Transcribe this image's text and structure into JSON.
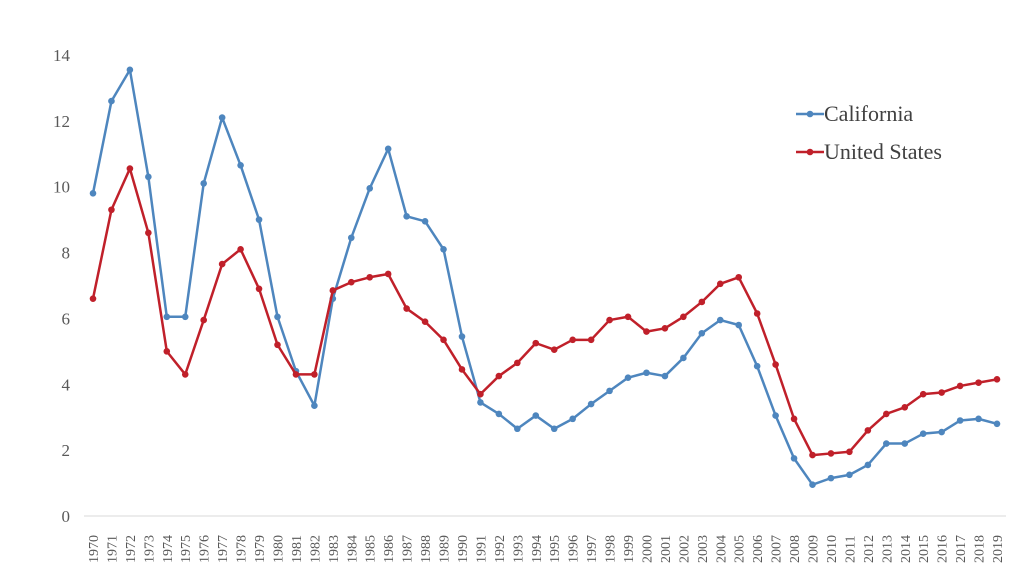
{
  "chart_data": {
    "type": "line",
    "title": "",
    "xlabel": "",
    "ylabel": "",
    "ylim": [
      0,
      14
    ],
    "yticks": [
      "0",
      "2",
      "4",
      "6",
      "8",
      "10",
      "12",
      "14"
    ],
    "grid": false,
    "legend_position": "top-right",
    "categories": [
      "1970",
      "1971",
      "1972",
      "1973",
      "1974",
      "1975",
      "1976",
      "1977",
      "1978",
      "1979",
      "1980",
      "1981",
      "1982",
      "1983",
      "1984",
      "1985",
      "1986",
      "1987",
      "1988",
      "1989",
      "1990",
      "1991",
      "1992",
      "1993",
      "1994",
      "1995",
      "1996",
      "1997",
      "1998",
      "1999",
      "2000",
      "2001",
      "2002",
      "2003",
      "2004",
      "2005",
      "2006",
      "2007",
      "2008",
      "2009",
      "2010",
      "2011",
      "2012",
      "2013",
      "2014",
      "2015",
      "2016",
      "2017",
      "2018",
      "2019"
    ],
    "series": [
      {
        "name": "California",
        "color": "#4e86be",
        "values": [
          9.8,
          12.6,
          13.55,
          10.3,
          6.05,
          6.05,
          10.1,
          12.1,
          10.65,
          9.0,
          6.05,
          4.4,
          3.35,
          6.6,
          8.45,
          9.95,
          11.15,
          9.1,
          8.95,
          8.1,
          5.45,
          3.45,
          3.1,
          2.65,
          3.05,
          2.65,
          2.95,
          3.4,
          3.8,
          4.2,
          4.35,
          4.25,
          4.8,
          5.55,
          5.95,
          5.8,
          4.55,
          3.05,
          1.75,
          0.95,
          1.15,
          1.25,
          1.55,
          2.2,
          2.2,
          2.5,
          2.55,
          2.9,
          2.95,
          2.8
        ]
      },
      {
        "name": "United States",
        "color": "#c0202a",
        "values": [
          6.6,
          9.3,
          10.55,
          8.6,
          5.0,
          4.3,
          5.95,
          7.65,
          8.1,
          6.9,
          5.2,
          4.3,
          4.3,
          6.85,
          7.1,
          7.25,
          7.35,
          6.3,
          5.9,
          5.35,
          4.45,
          3.7,
          4.25,
          4.65,
          5.25,
          5.05,
          5.35,
          5.35,
          5.95,
          6.05,
          5.6,
          5.7,
          6.05,
          6.5,
          7.05,
          7.25,
          6.15,
          4.6,
          2.95,
          1.85,
          1.9,
          1.95,
          2.6,
          3.1,
          3.3,
          3.7,
          3.75,
          3.95,
          4.05,
          4.15
        ]
      }
    ]
  }
}
